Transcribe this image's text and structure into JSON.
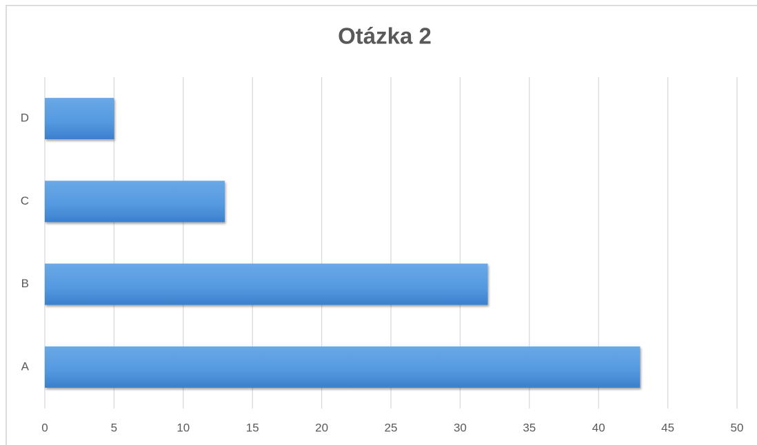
{
  "chart_data": {
    "type": "barh",
    "title": "Otázka 2",
    "categories": [
      "A",
      "B",
      "C",
      "D"
    ],
    "values": [
      43,
      32,
      13,
      5
    ],
    "color": "#4a8fd8",
    "xlim": [
      0,
      50
    ],
    "xticks": [
      0,
      5,
      10,
      15,
      20,
      25,
      30,
      35,
      40,
      45,
      50
    ],
    "grid": true
  }
}
